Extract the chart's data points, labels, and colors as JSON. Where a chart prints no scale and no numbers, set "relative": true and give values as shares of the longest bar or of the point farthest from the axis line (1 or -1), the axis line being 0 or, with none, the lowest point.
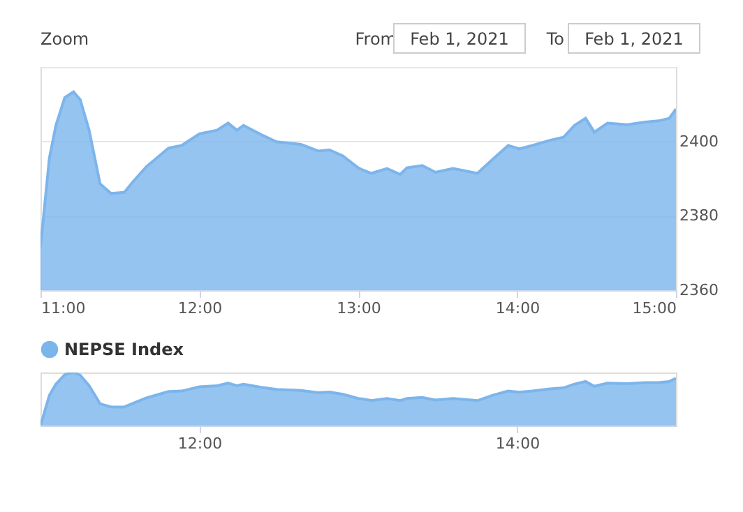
{
  "chart_data": [
    {
      "type": "area",
      "x": [
        11.0,
        11.056,
        11.097,
        11.153,
        11.208,
        11.25,
        11.306,
        11.375,
        11.444,
        11.528,
        11.583,
        11.667,
        11.806,
        11.889,
        12.0,
        12.111,
        12.181,
        12.236,
        12.278,
        12.389,
        12.486,
        12.639,
        12.75,
        12.819,
        12.903,
        13.0,
        13.028,
        13.083,
        13.181,
        13.264,
        13.306,
        13.403,
        13.486,
        13.597,
        13.75,
        13.847,
        13.944,
        14.014,
        14.097,
        14.208,
        14.292,
        14.361,
        14.431,
        14.486,
        14.569,
        14.694,
        14.806,
        14.889,
        14.958,
        15.0
      ],
      "series": [
        {
          "name": "NEPSE Index",
          "color": "#7cb5ec",
          "values": [
            2371.6,
            2395.5,
            2404.3,
            2411.8,
            2413.3,
            2411.2,
            2403.0,
            2388.6,
            2386.0,
            2386.3,
            2389.2,
            2393.2,
            2398.2,
            2398.9,
            2402.0,
            2403.0,
            2404.9,
            2403.0,
            2404.3,
            2401.8,
            2399.9,
            2399.2,
            2397.4,
            2397.7,
            2396.1,
            2392.9,
            2392.3,
            2391.4,
            2392.7,
            2391.1,
            2392.9,
            2393.5,
            2391.7,
            2392.7,
            2391.4,
            2395.2,
            2398.9,
            2398.0,
            2398.9,
            2400.3,
            2401.1,
            2404.3,
            2406.2,
            2402.5,
            2404.9,
            2404.5,
            2405.2,
            2405.5,
            2406.2,
            2408.7
          ]
        }
      ],
      "xlim": [
        11,
        15
      ],
      "xticks": [
        {
          "value": 11,
          "label": "11:00"
        },
        {
          "value": 12,
          "label": "12:00"
        },
        {
          "value": 13,
          "label": "13:00"
        },
        {
          "value": 14,
          "label": "14:00"
        },
        {
          "value": 15,
          "label": "15:00"
        }
      ],
      "ylim": [
        2360,
        2420
      ],
      "yticks": [
        2360,
        2380,
        2400,
        {
          "value": 2420,
          "label": null
        }
      ],
      "grid": "y",
      "legend": "bottom",
      "annotations": [
        "Zoom",
        "From",
        "Feb 1, 2021",
        "To",
        "Feb 1, 2021"
      ]
    },
    {
      "type": "area",
      "x": [
        11.0,
        11.056,
        11.097,
        11.153,
        11.208,
        11.25,
        11.306,
        11.375,
        11.444,
        11.528,
        11.583,
        11.667,
        11.806,
        11.889,
        12.0,
        12.111,
        12.181,
        12.236,
        12.278,
        12.389,
        12.486,
        12.639,
        12.75,
        12.819,
        12.903,
        13.0,
        13.028,
        13.083,
        13.181,
        13.264,
        13.306,
        13.403,
        13.486,
        13.597,
        13.75,
        13.847,
        13.944,
        14.014,
        14.097,
        14.208,
        14.292,
        14.361,
        14.431,
        14.486,
        14.569,
        14.694,
        14.806,
        14.889,
        14.958,
        15.0
      ],
      "series": [
        {
          "color": "#7cb5ec",
          "values": [
            0,
            0.57,
            0.78,
            0.96,
            1,
            0.95,
            0.75,
            0.41,
            0.35,
            0.35,
            0.42,
            0.52,
            0.64,
            0.65,
            0.73,
            0.75,
            0.8,
            0.75,
            0.78,
            0.72,
            0.68,
            0.66,
            0.62,
            0.63,
            0.59,
            0.51,
            0.5,
            0.47,
            0.51,
            0.47,
            0.51,
            0.53,
            0.48,
            0.51,
            0.47,
            0.57,
            0.65,
            0.63,
            0.65,
            0.69,
            0.71,
            0.78,
            0.83,
            0.74,
            0.8,
            0.79,
            0.81,
            0.81,
            0.83,
            0.89
          ]
        }
      ],
      "relative": true,
      "xlim": [
        11,
        15
      ],
      "xticks": [
        {
          "value": 12,
          "label": "12:00"
        },
        {
          "value": 14,
          "label": "14:00"
        }
      ],
      "tick_labels": "x"
    }
  ]
}
